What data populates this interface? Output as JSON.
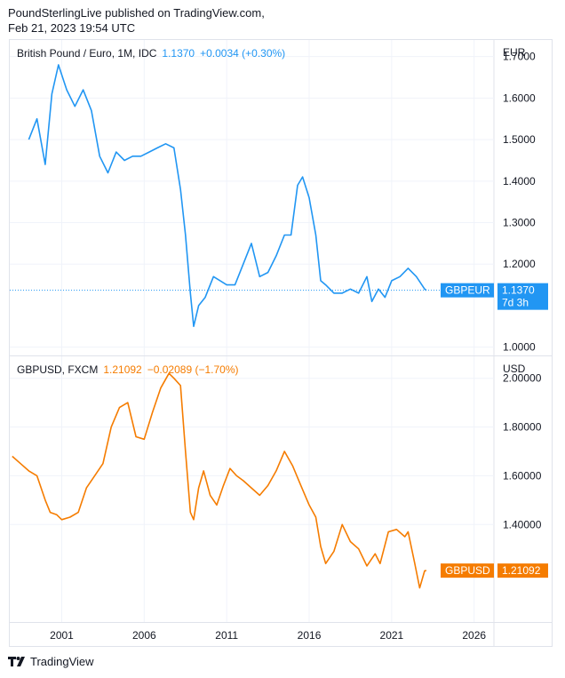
{
  "header": {
    "line1": "PoundSterlingLive published on TradingView.com,",
    "line2": "Feb 21, 2023 19:54 UTC"
  },
  "footer": {
    "brand": "TradingView"
  },
  "colors": {
    "blue": "#2196f3",
    "orange": "#f57c00",
    "grid": "#f0f3fa",
    "border": "#e0e3eb",
    "text": "#131722"
  },
  "chart_data": [
    {
      "type": "line",
      "legend": {
        "symbol": "British Pound / Euro, 1M, IDC",
        "last": "1.1370",
        "change": "+0.0034 (+0.30%)"
      },
      "currency": "EUR",
      "y_ticks": [
        "1.7000",
        "1.6000",
        "1.5000",
        "1.4000",
        "1.3000",
        "1.2000",
        "1.0000"
      ],
      "ylim": [
        0.98,
        1.74
      ],
      "price_tag": {
        "label": "GBPEUR",
        "value": "1.1370",
        "countdown": "7d 3h"
      },
      "color": "#2196f3",
      "x": [
        1999.0,
        1999.5,
        2000.0,
        2000.4,
        2000.8,
        2001.3,
        2001.8,
        2002.3,
        2002.8,
        2003.3,
        2003.8,
        2004.3,
        2004.8,
        2005.3,
        2005.8,
        2006.3,
        2006.8,
        2007.3,
        2007.8,
        2008.2,
        2008.5,
        2008.8,
        2009.0,
        2009.3,
        2009.7,
        2010.2,
        2010.6,
        2011.0,
        2011.5,
        2012.0,
        2012.5,
        2013.0,
        2013.5,
        2014.0,
        2014.5,
        2014.9,
        2015.3,
        2015.6,
        2016.0,
        2016.4,
        2016.7,
        2017.0,
        2017.5,
        2018.0,
        2018.5,
        2019.0,
        2019.5,
        2019.8,
        2020.2,
        2020.6,
        2021.0,
        2021.5,
        2022.0,
        2022.5,
        2023.0,
        2023.1
      ],
      "y": [
        1.5,
        1.55,
        1.44,
        1.61,
        1.68,
        1.62,
        1.58,
        1.62,
        1.57,
        1.46,
        1.42,
        1.47,
        1.45,
        1.46,
        1.46,
        1.47,
        1.48,
        1.49,
        1.48,
        1.38,
        1.27,
        1.13,
        1.05,
        1.1,
        1.12,
        1.17,
        1.16,
        1.15,
        1.15,
        1.2,
        1.25,
        1.17,
        1.18,
        1.22,
        1.27,
        1.27,
        1.39,
        1.41,
        1.36,
        1.27,
        1.16,
        1.15,
        1.13,
        1.13,
        1.14,
        1.13,
        1.17,
        1.11,
        1.14,
        1.12,
        1.16,
        1.17,
        1.19,
        1.17,
        1.14,
        1.137
      ]
    },
    {
      "type": "line",
      "legend": {
        "symbol": "GBPUSD, FXCM",
        "last": "1.21092",
        "change": "−0.02089 (−1.70%)"
      },
      "currency": "USD",
      "y_ticks": [
        "2.00000",
        "1.80000",
        "1.60000",
        "1.40000"
      ],
      "ylim": [
        1.0,
        2.09
      ],
      "price_tag": {
        "label": "GBPUSD",
        "value": "1.21092"
      },
      "color": "#f57c00",
      "x": [
        1998.0,
        1998.5,
        1999.0,
        1999.5,
        2000.0,
        2000.3,
        2000.7,
        2001.0,
        2001.5,
        2002.0,
        2002.5,
        2003.0,
        2003.5,
        2004.0,
        2004.5,
        2005.0,
        2005.5,
        2006.0,
        2006.5,
        2007.0,
        2007.5,
        2007.8,
        2008.2,
        2008.5,
        2008.8,
        2009.0,
        2009.3,
        2009.6,
        2010.0,
        2010.4,
        2010.8,
        2011.2,
        2011.6,
        2012.0,
        2012.5,
        2013.0,
        2013.5,
        2014.0,
        2014.5,
        2015.0,
        2015.5,
        2016.0,
        2016.4,
        2016.7,
        2017.0,
        2017.5,
        2018.0,
        2018.5,
        2019.0,
        2019.5,
        2020.0,
        2020.3,
        2020.8,
        2021.3,
        2021.8,
        2022.0,
        2022.4,
        2022.7,
        2023.0,
        2023.1
      ],
      "y": [
        1.68,
        1.65,
        1.62,
        1.6,
        1.5,
        1.45,
        1.44,
        1.42,
        1.43,
        1.45,
        1.55,
        1.6,
        1.65,
        1.8,
        1.88,
        1.9,
        1.76,
        1.75,
        1.86,
        1.96,
        2.02,
        2.0,
        1.97,
        1.7,
        1.45,
        1.42,
        1.55,
        1.62,
        1.52,
        1.48,
        1.56,
        1.63,
        1.6,
        1.58,
        1.55,
        1.52,
        1.56,
        1.62,
        1.7,
        1.64,
        1.56,
        1.48,
        1.43,
        1.31,
        1.24,
        1.29,
        1.4,
        1.33,
        1.3,
        1.23,
        1.28,
        1.24,
        1.37,
        1.38,
        1.35,
        1.37,
        1.24,
        1.14,
        1.21,
        1.21092
      ]
    }
  ],
  "x_axis": {
    "ticks": [
      "2001",
      "2006",
      "2011",
      "2016",
      "2021",
      "2026"
    ],
    "values": [
      2001,
      2006,
      2011,
      2016,
      2021,
      2026
    ],
    "range": [
      1997.85,
      2027.2
    ]
  }
}
